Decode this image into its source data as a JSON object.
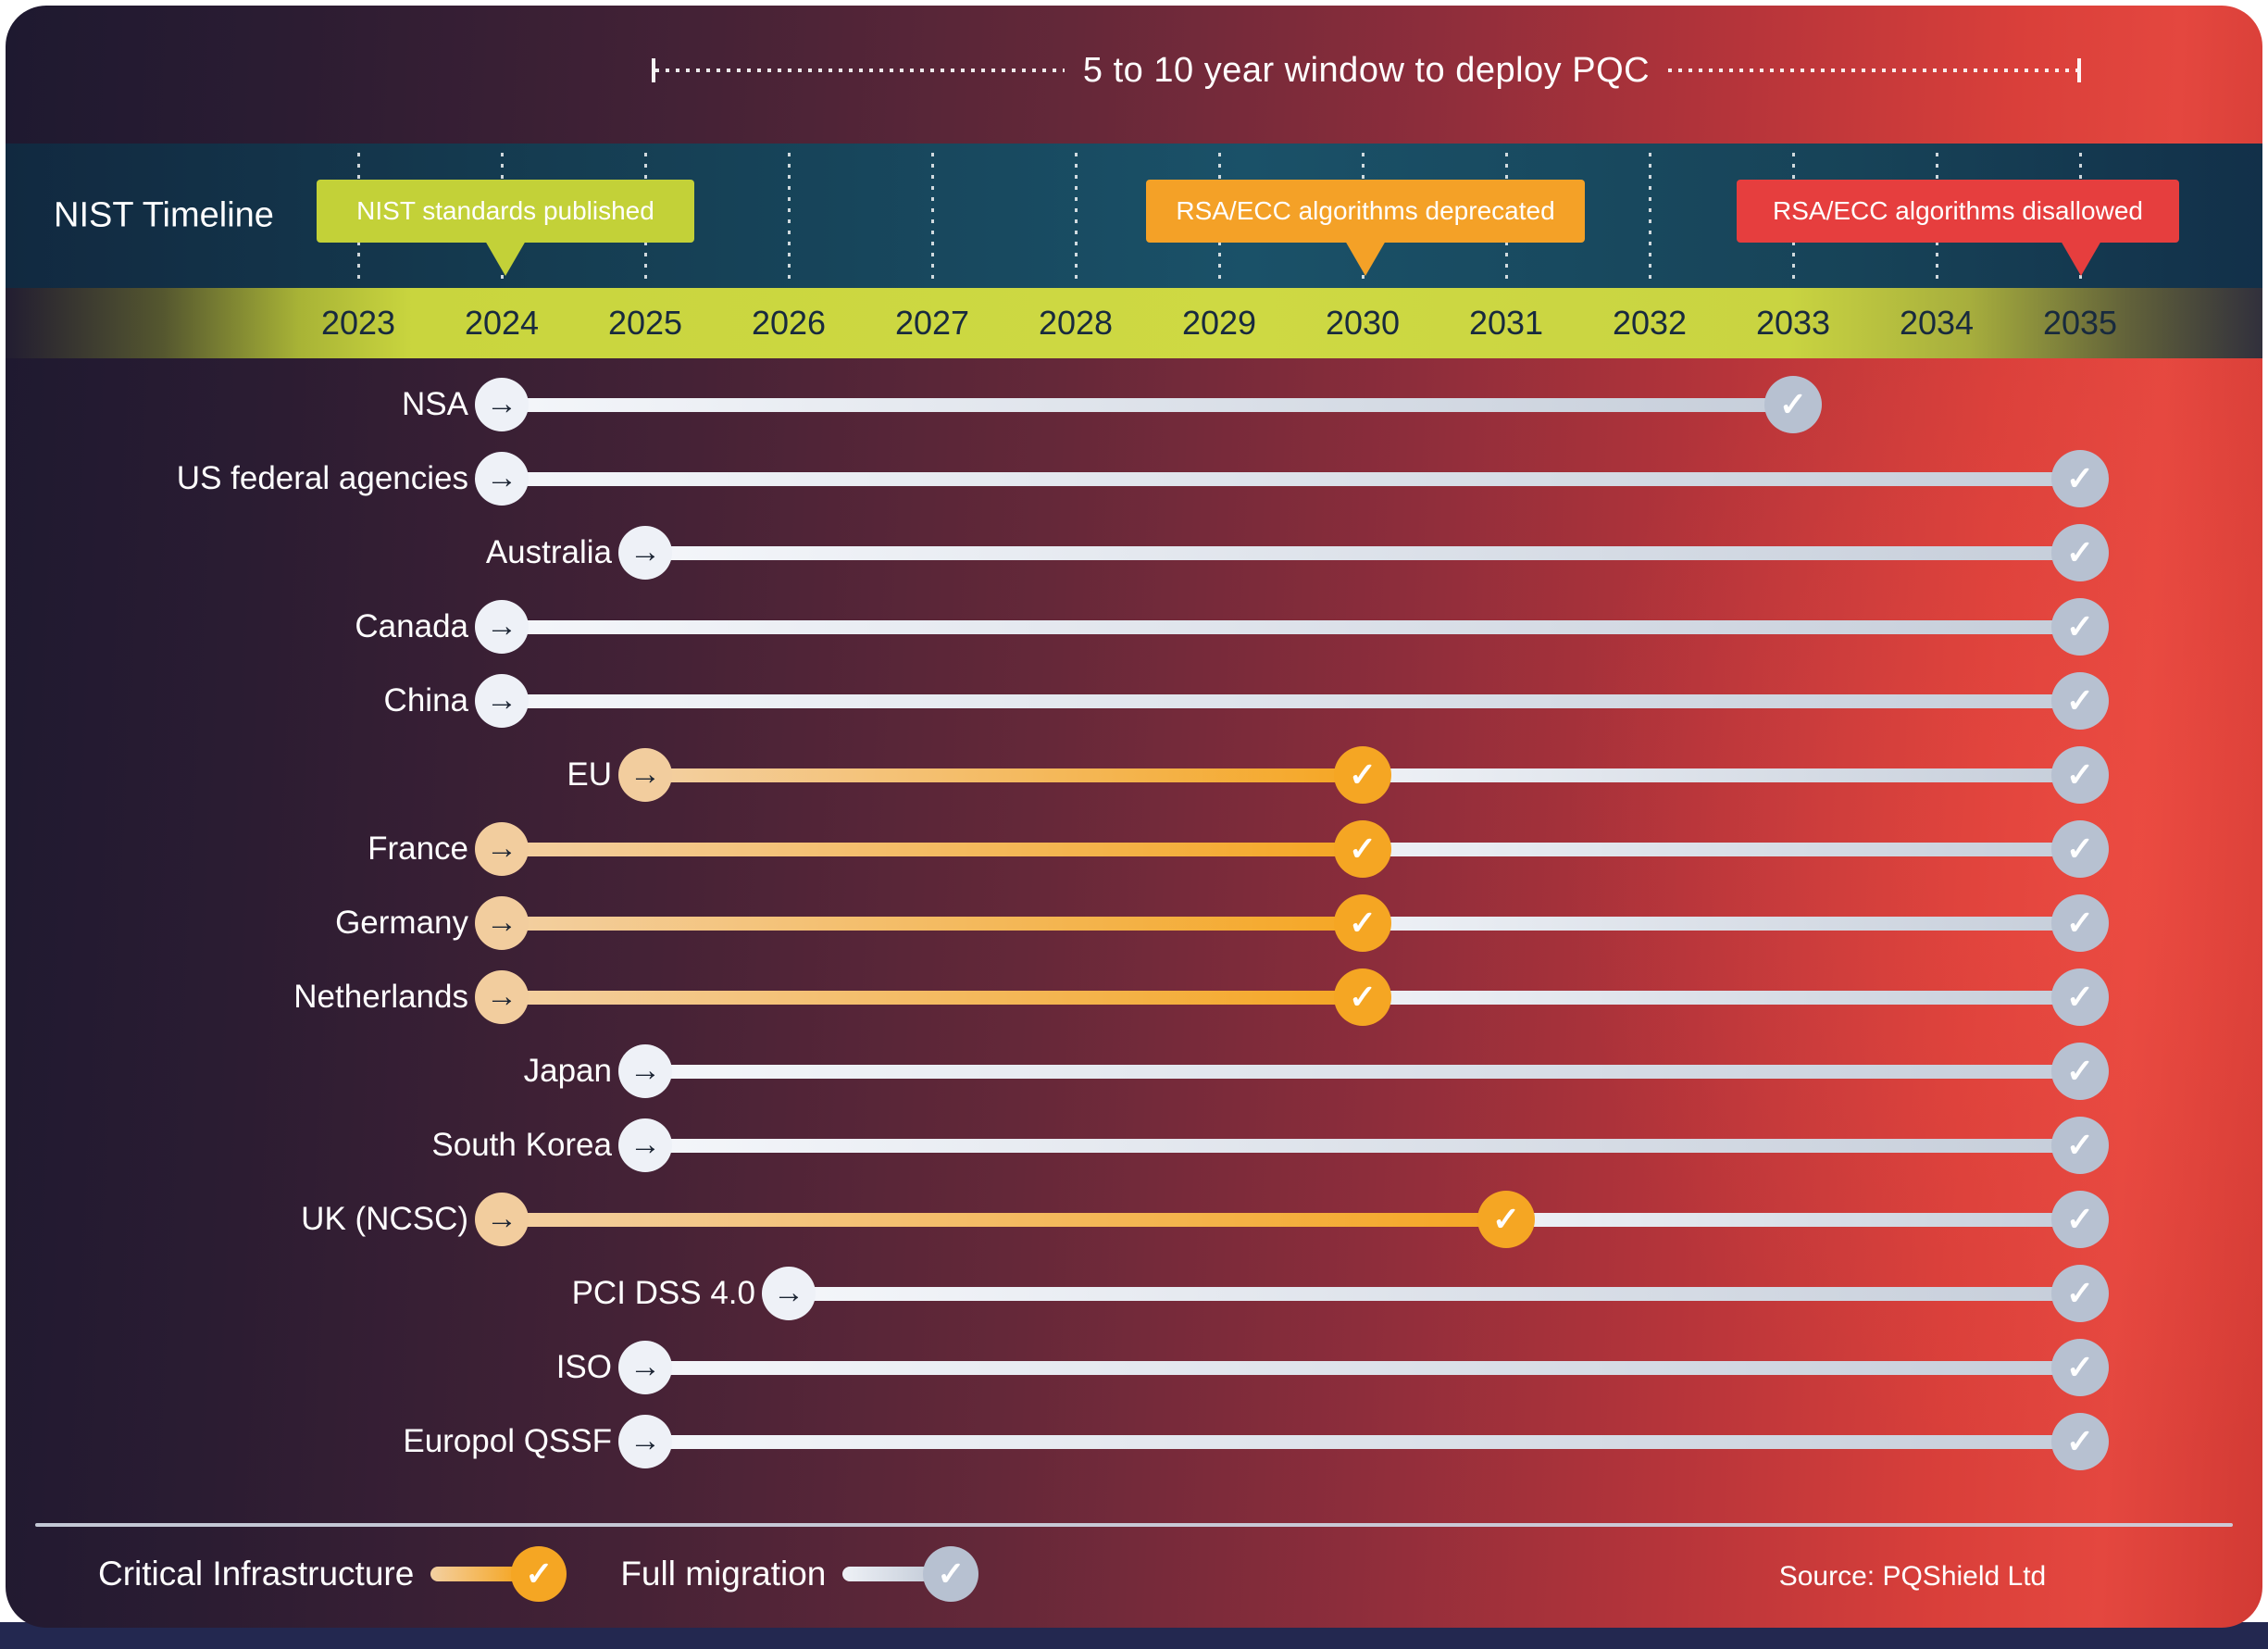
{
  "header": {
    "window_label": "5 to 10 year window to deploy PQC",
    "window_start_year": 2025,
    "window_end_year": 2035
  },
  "nist": {
    "title": "NIST Timeline",
    "events": [
      {
        "label": "NIST standards published",
        "year": 2024,
        "color": "#c3d138"
      },
      {
        "label": "RSA/ECC algorithms deprecated",
        "year": 2030,
        "color": "#f4a127"
      },
      {
        "label": "RSA/ECC algorithms disallowed",
        "year": 2035,
        "color": "#e63e3e"
      }
    ]
  },
  "axis": {
    "years": [
      2023,
      2024,
      2025,
      2026,
      2027,
      2028,
      2029,
      2030,
      2031,
      2032,
      2033,
      2034,
      2035
    ]
  },
  "chart_data": {
    "type": "timeline",
    "x_range": [
      2023,
      2035
    ],
    "rows": [
      {
        "label": "NSA",
        "start": 2024,
        "end": 2033,
        "critical": false,
        "checkpoint": null
      },
      {
        "label": "US federal agencies",
        "start": 2024,
        "end": 2035,
        "critical": false,
        "checkpoint": null
      },
      {
        "label": "Australia",
        "start": 2025,
        "end": 2035,
        "critical": false,
        "checkpoint": null
      },
      {
        "label": "Canada",
        "start": 2024,
        "end": 2035,
        "critical": false,
        "checkpoint": null
      },
      {
        "label": "China",
        "start": 2024,
        "end": 2035,
        "critical": false,
        "checkpoint": null
      },
      {
        "label": "EU",
        "start": 2025,
        "end": 2035,
        "critical": true,
        "checkpoint": 2030
      },
      {
        "label": "France",
        "start": 2024,
        "end": 2035,
        "critical": true,
        "checkpoint": 2030
      },
      {
        "label": "Germany",
        "start": 2024,
        "end": 2035,
        "critical": true,
        "checkpoint": 2030
      },
      {
        "label": "Netherlands",
        "start": 2024,
        "end": 2035,
        "critical": true,
        "checkpoint": 2030
      },
      {
        "label": "Japan",
        "start": 2025,
        "end": 2035,
        "critical": false,
        "checkpoint": null
      },
      {
        "label": "South Korea",
        "start": 2025,
        "end": 2035,
        "critical": false,
        "checkpoint": null
      },
      {
        "label": "UK (NCSC)",
        "start": 2024,
        "end": 2035,
        "critical": true,
        "checkpoint": 2031
      },
      {
        "label": "PCI DSS 4.0",
        "start": 2026,
        "end": 2035,
        "critical": false,
        "checkpoint": null
      },
      {
        "label": "ISO",
        "start": 2025,
        "end": 2035,
        "critical": false,
        "checkpoint": null
      },
      {
        "label": "Europol QSSF",
        "start": 2025,
        "end": 2035,
        "critical": false,
        "checkpoint": null
      }
    ]
  },
  "legend": {
    "critical_label": "Critical Infrastructure",
    "full_label": "Full migration",
    "critical_color": "#f5a623",
    "full_color": "#b7c1d1"
  },
  "source": "Source: PQShield Ltd",
  "colors": {
    "checkpoint_orange": "#f5a623",
    "migration_gray": "#b7c1d1",
    "start_plain": "#eef1f7",
    "start_critical": "#f2cd9e",
    "arrow_dark": "#1b2433",
    "band_teal": "#1a5168",
    "year_text": "#182a3e",
    "footer_strip": "#232850"
  }
}
